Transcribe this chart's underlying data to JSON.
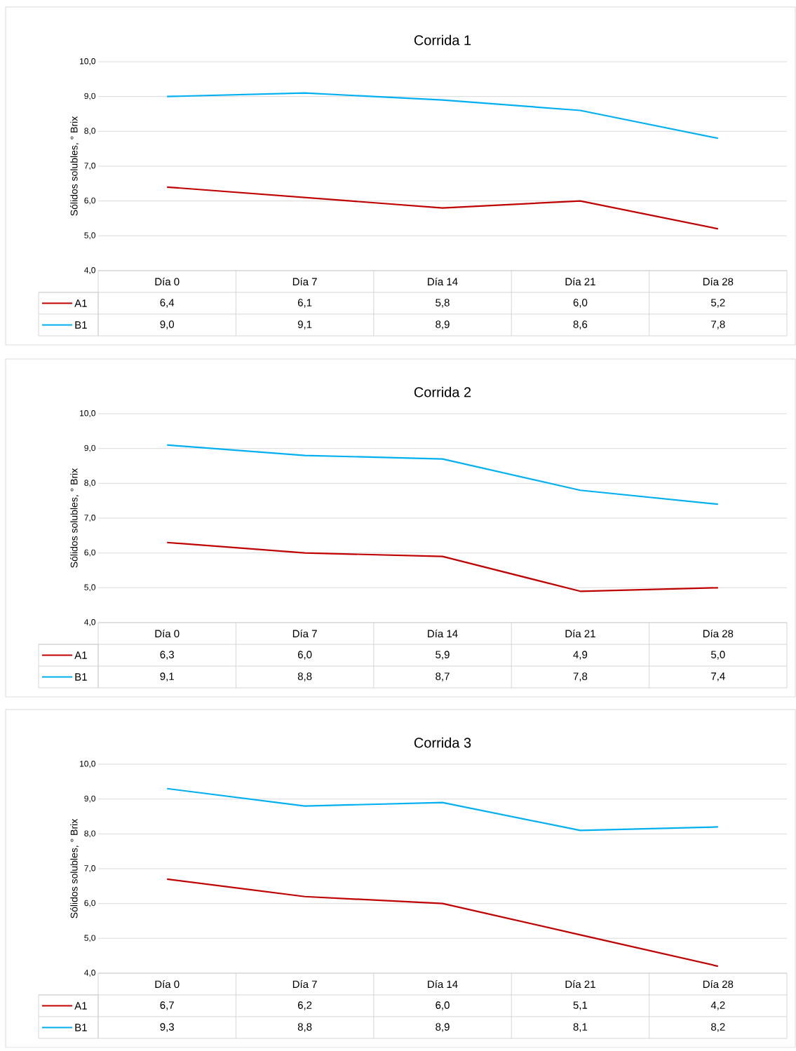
{
  "chart_data": [
    {
      "type": "line",
      "title": "Corrida 1",
      "ylabel": "Sólidos solubles, ° Brix",
      "categories": [
        "Día 0",
        "Día 7",
        "Día 14",
        "Día 21",
        "Día 28"
      ],
      "series": [
        {
          "name": "A1",
          "color": "#c00000",
          "values": [
            6.4,
            6.1,
            5.8,
            6.0,
            5.2
          ],
          "value_labels": [
            "6,4",
            "6,1",
            "5,8",
            "6,0",
            "5,2"
          ]
        },
        {
          "name": "B1",
          "color": "#00b0f0",
          "values": [
            9.0,
            9.1,
            8.9,
            8.6,
            7.8
          ],
          "value_labels": [
            "9,0",
            "9,1",
            "8,9",
            "8,6",
            "7,8"
          ]
        }
      ],
      "ylim": [
        4,
        10
      ],
      "yticks": [
        {
          "value": 4,
          "label": "4,0"
        },
        {
          "value": 5,
          "label": "5,0"
        },
        {
          "value": 6,
          "label": "6,0"
        },
        {
          "value": 7,
          "label": "7,0"
        },
        {
          "value": 8,
          "label": "8,0"
        },
        {
          "value": 9,
          "label": "9,0"
        },
        {
          "value": 10,
          "label": "10,0"
        }
      ],
      "grid": "y",
      "legend": "bottom"
    },
    {
      "type": "line",
      "title": "Corrida 2",
      "ylabel": "Sólidos solubles, ° Brix",
      "categories": [
        "Día 0",
        "Día 7",
        "Día 14",
        "Día 21",
        "Día 28"
      ],
      "series": [
        {
          "name": "A1",
          "color": "#c00000",
          "values": [
            6.3,
            6.0,
            5.9,
            4.9,
            5.0
          ],
          "value_labels": [
            "6,3",
            "6,0",
            "5,9",
            "4,9",
            "5,0"
          ]
        },
        {
          "name": "B1",
          "color": "#00b0f0",
          "values": [
            9.1,
            8.8,
            8.7,
            7.8,
            7.4
          ],
          "value_labels": [
            "9,1",
            "8,8",
            "8,7",
            "7,8",
            "7,4"
          ]
        }
      ],
      "ylim": [
        4,
        10
      ],
      "yticks": [
        {
          "value": 4,
          "label": "4,0"
        },
        {
          "value": 5,
          "label": "5,0"
        },
        {
          "value": 6,
          "label": "6,0"
        },
        {
          "value": 7,
          "label": "7,0"
        },
        {
          "value": 8,
          "label": "8,0"
        },
        {
          "value": 9,
          "label": "9,0"
        },
        {
          "value": 10,
          "label": "10,0"
        }
      ],
      "grid": "y",
      "legend": "bottom"
    },
    {
      "type": "line",
      "title": "Corrida 3",
      "ylabel": "Sólidos solubles, ° Brix",
      "categories": [
        "Día 0",
        "Día 7",
        "Día 14",
        "Día 21",
        "Día 28"
      ],
      "series": [
        {
          "name": "A1",
          "color": "#c00000",
          "values": [
            6.7,
            6.2,
            6.0,
            5.1,
            4.2
          ],
          "value_labels": [
            "6,7",
            "6,2",
            "6,0",
            "5,1",
            "4,2"
          ]
        },
        {
          "name": "B1",
          "color": "#00b0f0",
          "values": [
            9.3,
            8.8,
            8.9,
            8.1,
            8.2
          ],
          "value_labels": [
            "9,3",
            "8,8",
            "8,9",
            "8,1",
            "8,2"
          ]
        }
      ],
      "ylim": [
        4,
        10
      ],
      "yticks": [
        {
          "value": 4,
          "label": "4,0"
        },
        {
          "value": 5,
          "label": "5,0"
        },
        {
          "value": 6,
          "label": "6,0"
        },
        {
          "value": 7,
          "label": "7,0"
        },
        {
          "value": 8,
          "label": "8,0"
        },
        {
          "value": 9,
          "label": "9,0"
        },
        {
          "value": 10,
          "label": "10,0"
        }
      ],
      "grid": "y",
      "legend": "bottom"
    }
  ]
}
